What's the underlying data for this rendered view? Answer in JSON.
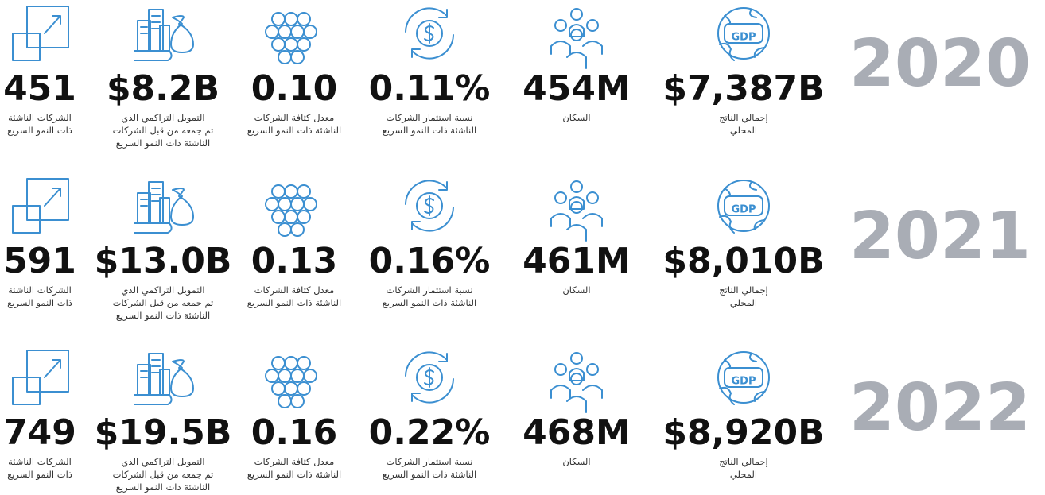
{
  "gdp_icon_text": "GDP",
  "stat_labels": [
    [
      "الشركات الناشئة",
      "ذات النمو السريع"
    ],
    [
      "التمويل التراكمي الذي",
      "تم جمعه من قبل الشركات",
      "الناشئة ذات النمو السريع"
    ],
    [
      "معدل كثافة الشركات",
      "الناشئة ذات النمو السريع"
    ],
    [
      "نسبة استثمار الشركات",
      "الناشئة ذات النمو السريع"
    ],
    [
      "السكان"
    ],
    [
      "إجمالي الناتج",
      "المحلي"
    ]
  ],
  "rows": [
    {
      "year": "2020",
      "values": [
        "451",
        "$8.2B",
        "0.10",
        "0.11%",
        "454M",
        "$7,387B"
      ]
    },
    {
      "year": "2021",
      "values": [
        "591",
        "$13.0B",
        "0.13",
        "0.16%",
        "461M",
        "$8,010B"
      ]
    },
    {
      "year": "2022",
      "values": [
        "749",
        "$19.5B",
        "0.16",
        "0.22%",
        "468M",
        "$8,920B"
      ]
    }
  ]
}
